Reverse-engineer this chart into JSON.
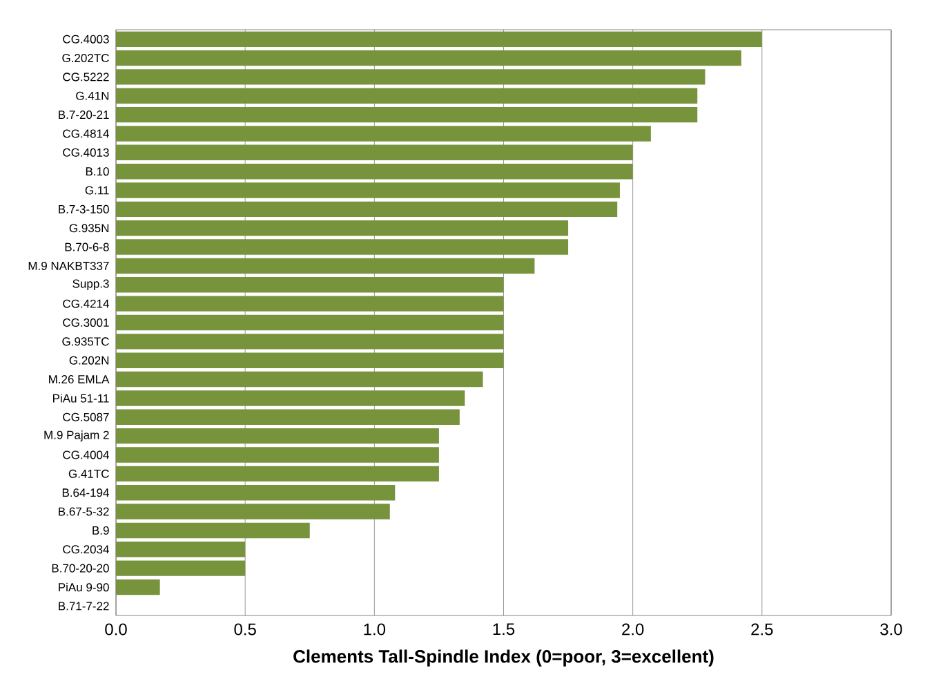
{
  "chart_data": {
    "type": "bar",
    "orientation": "horizontal",
    "xlabel": "Clements Tall-Spindle Index (0=poor, 3=excellent)",
    "categories": [
      "CG.4003",
      "G.202TC",
      "CG.5222",
      "G.41N",
      "B.7-20-21",
      "CG.4814",
      "CG.4013",
      "B.10",
      "G.11",
      "B.7-3-150",
      "G.935N",
      "B.70-6-8",
      "M.9 NAKBT337",
      "Supp.3",
      "CG.4214",
      "CG.3001",
      "G.935TC",
      "G.202N",
      "M.26 EMLA",
      "PiAu 51-11",
      "CG.5087",
      "M.9 Pajam 2",
      "CG.4004",
      "G.41TC",
      "B.64-194",
      "B.67-5-32",
      "B.9",
      "CG.2034",
      "B.70-20-20",
      "PiAu 9-90",
      "B.71-7-22"
    ],
    "values": [
      2.5,
      2.42,
      2.28,
      2.25,
      2.25,
      2.07,
      2.0,
      2.0,
      1.95,
      1.94,
      1.75,
      1.75,
      1.62,
      1.5,
      1.5,
      1.5,
      1.5,
      1.5,
      1.42,
      1.35,
      1.33,
      1.25,
      1.25,
      1.25,
      1.08,
      1.06,
      0.75,
      0.5,
      0.5,
      0.17,
      0
    ],
    "color": "#77933c",
    "xlim": [
      0,
      3
    ],
    "xticks": [
      {
        "value": 0,
        "label": "0.0"
      },
      {
        "value": 0.5,
        "label": "0.5"
      },
      {
        "value": 1,
        "label": "1.0"
      },
      {
        "value": 1.5,
        "label": "1.5"
      },
      {
        "value": 2,
        "label": "2.0"
      },
      {
        "value": 2.5,
        "label": "2.5"
      },
      {
        "value": 3,
        "label": "3.0"
      }
    ],
    "grid": "x"
  }
}
